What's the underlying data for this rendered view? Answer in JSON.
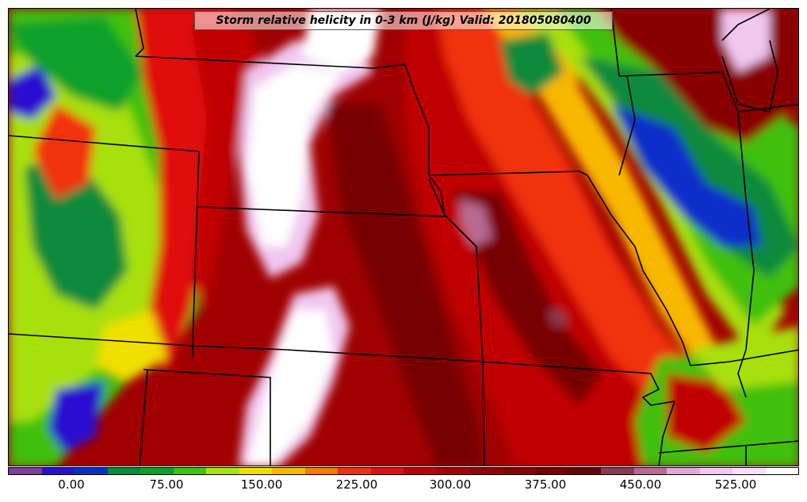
{
  "title": "Storm relative helicity in 0-3 km (J/kg) Valid: 201805080400",
  "colorbar": {
    "colors": [
      "#7e3d96",
      "#2a10d0",
      "#0a2fc8",
      "#0a8a3a",
      "#0aa02a",
      "#40c010",
      "#a8e010",
      "#f0e000",
      "#f8b800",
      "#f87800",
      "#f03010",
      "#e01010",
      "#c00000",
      "#a80000",
      "#980000",
      "#880000",
      "#780000",
      "#680000",
      "#8a3a50",
      "#b86a90",
      "#e0a8d8",
      "#f0c8f0",
      "#f8e0f8",
      "#ffffff"
    ],
    "tick_labels": [
      "0.00",
      "75.00",
      "150.00",
      "225.00",
      "300.00",
      "375.00",
      "450.00",
      "525.00"
    ]
  }
}
